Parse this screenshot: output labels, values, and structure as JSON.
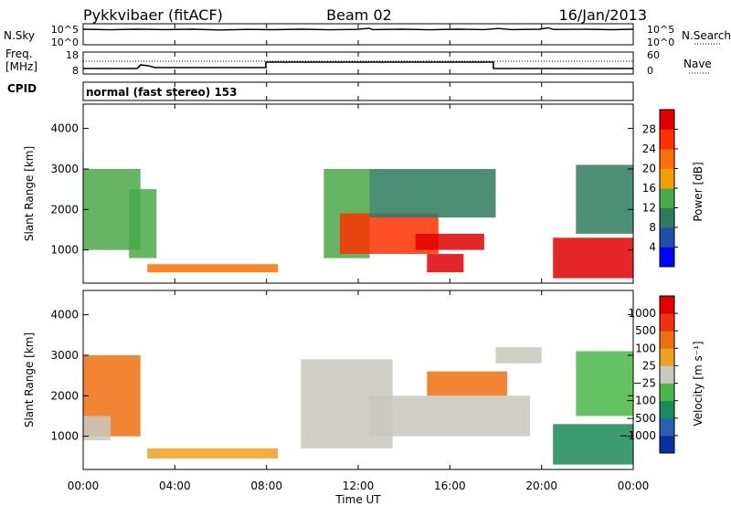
{
  "header": {
    "station": "Pykkvibaer (fitACF)",
    "beam": "Beam 02",
    "date": "16/Jan/2013"
  },
  "panels": {
    "nsky": {
      "label": "N.Sky",
      "left_ticks": [
        "10^5",
        "10^0"
      ],
      "right_ticks": [
        "10^5",
        "10^0"
      ],
      "right_label": "N.Search"
    },
    "freq": {
      "label_line1": "Freq.",
      "label_line2": "[MHz]",
      "left_ticks": [
        "18",
        "8"
      ],
      "right_ticks": [
        "60",
        "0"
      ],
      "right_label": "Nave"
    },
    "cpid": {
      "label": "CPID",
      "text": "normal (fast stereo) 153"
    }
  },
  "axes": {
    "ylabel": "Slant Range [km]",
    "yticks": [
      "4000",
      "3000",
      "2000",
      "1000"
    ],
    "xticks": [
      "00:00",
      "04:00",
      "08:00",
      "12:00",
      "16:00",
      "20:00",
      "00:00"
    ],
    "xlabel": "Time UT"
  },
  "colorbars": {
    "power": {
      "label": "Power [dB]",
      "ticks": [
        "28",
        "24",
        "20",
        "16",
        "12",
        "8",
        "4"
      ],
      "colors": [
        "#0000ff",
        "#1e4ea8",
        "#2d7a5e",
        "#4aa84a",
        "#f0a000",
        "#ff7000",
        "#ff3000",
        "#e00000"
      ]
    },
    "velocity": {
      "label": "Velocity [m s⁻¹]",
      "ticks": [
        "1000",
        "500",
        "100",
        "25",
        "−25",
        "−100",
        "−500",
        "−1000"
      ],
      "colors": [
        "#0a2fa0",
        "#2a60b0",
        "#1a8a5a",
        "#4ab848",
        "#c8c8c0",
        "#f0a020",
        "#f07010",
        "#f03010",
        "#e00000"
      ]
    }
  },
  "chart_data": [
    {
      "type": "heatmap",
      "name": "power",
      "x_unit": "hours UT",
      "y_unit": "km",
      "xlim": [
        0,
        24
      ],
      "ylim": [
        180,
        4600
      ],
      "regions": [
        {
          "x": [
            0.0,
            2.5
          ],
          "y": [
            1000,
            3000
          ],
          "level": 3
        },
        {
          "x": [
            2.0,
            3.2
          ],
          "y": [
            800,
            2500
          ],
          "level": 3
        },
        {
          "x": [
            2.8,
            8.5
          ],
          "y": [
            450,
            650
          ],
          "level": 5
        },
        {
          "x": [
            10.5,
            12.5
          ],
          "y": [
            800,
            3000
          ],
          "level": 3
        },
        {
          "x": [
            11.2,
            15.5
          ],
          "y": [
            900,
            1900
          ],
          "level": 6
        },
        {
          "x": [
            12.5,
            18.0
          ],
          "y": [
            1800,
            3000
          ],
          "level": 2
        },
        {
          "x": [
            14.5,
            17.5
          ],
          "y": [
            1000,
            1400
          ],
          "level": 7
        },
        {
          "x": [
            15.0,
            16.6
          ],
          "y": [
            450,
            900
          ],
          "level": 7
        },
        {
          "x": [
            20.5,
            24.0
          ],
          "y": [
            300,
            1300
          ],
          "level": 7
        },
        {
          "x": [
            21.5,
            24.0
          ],
          "y": [
            1400,
            3100
          ],
          "level": 2
        }
      ]
    },
    {
      "type": "heatmap",
      "name": "velocity",
      "x_unit": "hours UT",
      "y_unit": "km",
      "xlim": [
        0,
        24
      ],
      "ylim": [
        180,
        4600
      ],
      "regions": [
        {
          "x": [
            0.0,
            2.5
          ],
          "y": [
            1000,
            3000
          ],
          "level": 6
        },
        {
          "x": [
            0.0,
            1.2
          ],
          "y": [
            900,
            1500
          ],
          "level": 4
        },
        {
          "x": [
            2.8,
            8.5
          ],
          "y": [
            450,
            700
          ],
          "level": 5
        },
        {
          "x": [
            9.5,
            13.5
          ],
          "y": [
            700,
            2900
          ],
          "level": 4
        },
        {
          "x": [
            12.5,
            19.5
          ],
          "y": [
            1000,
            2000
          ],
          "level": 4
        },
        {
          "x": [
            15.0,
            18.5
          ],
          "y": [
            2000,
            2600
          ],
          "level": 6
        },
        {
          "x": [
            18.0,
            20.0
          ],
          "y": [
            2800,
            3200
          ],
          "level": 4
        },
        {
          "x": [
            20.5,
            24.0
          ],
          "y": [
            300,
            1300
          ],
          "level": 2
        },
        {
          "x": [
            21.5,
            24.0
          ],
          "y": [
            1500,
            3100
          ],
          "level": 3
        }
      ]
    }
  ]
}
